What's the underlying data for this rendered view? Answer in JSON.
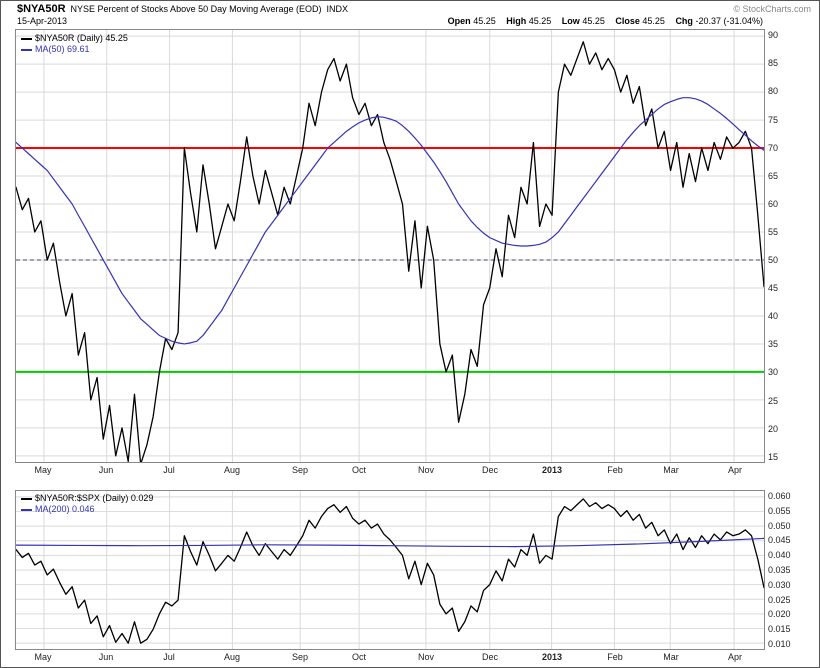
{
  "header": {
    "symbol": "$NYA50R",
    "title": "NYSE Percent of Stocks Above 50 Day Moving Average (EOD)",
    "exchange": "INDX",
    "date": "15-Apr-2013",
    "copyright": "© StockCharts.com",
    "quote": {
      "open_label": "Open",
      "open_value": "45.25",
      "high_label": "High",
      "high_value": "45.25",
      "low_label": "Low",
      "low_value": "45.25",
      "close_label": "Close",
      "close_value": "45.25",
      "chg_label": "Chg",
      "chg_value": "-20.37 (-31.04%)"
    }
  },
  "months": {
    "labels": [
      "May",
      "Jun",
      "Jul",
      "Aug",
      "Sep",
      "Oct",
      "Nov",
      "Dec",
      "2013",
      "Feb",
      "Mar",
      "Apr"
    ],
    "fractions": [
      0.0373,
      0.1213,
      0.2053,
      0.2893,
      0.38,
      0.4587,
      0.548,
      0.6333,
      0.716,
      0.8,
      0.8747,
      0.96
    ],
    "bold_index": 8
  },
  "colors": {
    "grid": "#d9d9d9",
    "price": "#000000",
    "ma": "#3333b3",
    "overbought_line": "#ff0000",
    "oversold_line": "#00cc00",
    "mid_dashed_line": "#44446a"
  },
  "chart_data": [
    {
      "type": "line",
      "panel": "main",
      "legend": [
        {
          "label": "$NYA50R (Daily) 45.25",
          "color": "#000000"
        },
        {
          "label": "MA(50) 69.61",
          "color": "#3333b3"
        }
      ],
      "ylim": [
        13.9,
        91.1
      ],
      "yticks": [
        "90",
        "85",
        "80",
        "75",
        "70",
        "65",
        "60",
        "55",
        "50",
        "45",
        "40",
        "35",
        "30",
        "25",
        "20",
        "15"
      ],
      "hlines": [
        {
          "value": 70,
          "color": "#ff0000",
          "width": 2,
          "dash": ""
        },
        {
          "value": 50,
          "color": "#44446a",
          "width": 1,
          "dash": "4,3"
        },
        {
          "value": 30,
          "color": "#00cc00",
          "width": 2,
          "dash": ""
        }
      ],
      "series": [
        {
          "name": "$NYA50R",
          "color": "#000000",
          "width": 1.3,
          "values": [
            63,
            59,
            61,
            55,
            57,
            50,
            53,
            46,
            40,
            44,
            33,
            37,
            25,
            29,
            18,
            24,
            15,
            20,
            14,
            26,
            13.5,
            17,
            22,
            30,
            36,
            34,
            37,
            70,
            62,
            55,
            67,
            60,
            52,
            56,
            60,
            57,
            64,
            72,
            65,
            60,
            66,
            62,
            58,
            63,
            60,
            65,
            70,
            78,
            74,
            80,
            84,
            86,
            82,
            85,
            79,
            76,
            78,
            74,
            76,
            71,
            68,
            64,
            60,
            48,
            57,
            45,
            56,
            50,
            35,
            30,
            33,
            21,
            26,
            34,
            31,
            42,
            45,
            52,
            47,
            58,
            54,
            63,
            60,
            71,
            56,
            60,
            58,
            80,
            85,
            83,
            86,
            89,
            85,
            87,
            84,
            86,
            84,
            80,
            83,
            78,
            81,
            74,
            77,
            70,
            73,
            66,
            71,
            63,
            69,
            64,
            70,
            66,
            71,
            68,
            72,
            70,
            71,
            73,
            70,
            58,
            45.25
          ]
        },
        {
          "name": "MA(50)",
          "color": "#3333b3",
          "width": 1.2,
          "values": [
            71,
            70,
            69,
            68,
            67,
            66,
            64.5,
            63,
            61.5,
            60,
            58,
            56,
            54,
            52,
            50,
            48,
            46,
            44,
            42.5,
            41,
            39.5,
            38.5,
            37.5,
            36.5,
            36,
            35.5,
            35.2,
            35,
            35.2,
            35.5,
            36.5,
            38,
            39.5,
            41,
            43,
            45,
            47,
            49,
            51,
            53,
            55,
            56.5,
            58,
            59.5,
            61,
            62.5,
            64,
            65.5,
            67,
            68.5,
            70,
            71,
            72,
            73,
            73.8,
            74.5,
            75,
            75.4,
            75.6,
            75.5,
            75.2,
            74.8,
            74,
            73,
            71.8,
            70.5,
            69,
            67.5,
            65.8,
            64,
            62,
            60,
            58.5,
            57,
            55.8,
            54.8,
            54,
            53.5,
            53,
            52.8,
            52.6,
            52.5,
            52.5,
            52.6,
            52.8,
            53.2,
            54,
            55,
            56.5,
            58,
            59.5,
            61,
            62.5,
            64,
            65.5,
            67,
            68.5,
            70,
            71.5,
            72.8,
            74,
            75,
            76,
            77,
            77.8,
            78.3,
            78.7,
            79,
            79,
            78.8,
            78.4,
            77.8,
            77,
            76.2,
            75.3,
            74.3,
            73.3,
            72.3,
            71.3,
            70.4,
            69.61
          ]
        }
      ]
    },
    {
      "type": "line",
      "panel": "ratio",
      "legend": [
        {
          "label": "$NYA50R:$SPX (Daily) 0.029",
          "color": "#000000"
        },
        {
          "label": "MA(200) 0.046",
          "color": "#3333b3"
        }
      ],
      "ylim": [
        0.008,
        0.062
      ],
      "yticks": [
        "0.060",
        "0.055",
        "0.050",
        "0.045",
        "0.040",
        "0.035",
        "0.030",
        "0.025",
        "0.020",
        "0.015",
        "0.010"
      ],
      "hlines": [],
      "series": [
        {
          "name": "$NYA50R:$SPX",
          "color": "#000000",
          "width": 1.3,
          "values": [
            0.042,
            0.0393,
            0.0407,
            0.0367,
            0.038,
            0.0333,
            0.0353,
            0.0307,
            0.0267,
            0.0293,
            0.022,
            0.0247,
            0.0167,
            0.0193,
            0.0122,
            0.016,
            0.0103,
            0.0133,
            0.01,
            0.0173,
            0.01,
            0.0113,
            0.0147,
            0.02,
            0.024,
            0.0227,
            0.0247,
            0.0467,
            0.0413,
            0.0367,
            0.0447,
            0.04,
            0.0347,
            0.0373,
            0.04,
            0.038,
            0.0427,
            0.048,
            0.0433,
            0.04,
            0.044,
            0.0413,
            0.0387,
            0.042,
            0.04,
            0.0433,
            0.0467,
            0.052,
            0.0493,
            0.0533,
            0.056,
            0.0573,
            0.0547,
            0.0567,
            0.0527,
            0.0507,
            0.052,
            0.0493,
            0.0507,
            0.0473,
            0.0453,
            0.0427,
            0.04,
            0.032,
            0.038,
            0.03,
            0.0373,
            0.0333,
            0.0233,
            0.02,
            0.022,
            0.014,
            0.0173,
            0.0227,
            0.0207,
            0.028,
            0.03,
            0.0347,
            0.0313,
            0.0387,
            0.036,
            0.042,
            0.04,
            0.0473,
            0.0373,
            0.04,
            0.0387,
            0.0533,
            0.0567,
            0.0553,
            0.0573,
            0.0593,
            0.0567,
            0.058,
            0.056,
            0.0573,
            0.056,
            0.0533,
            0.0553,
            0.052,
            0.054,
            0.0493,
            0.0513,
            0.0467,
            0.0487,
            0.044,
            0.0473,
            0.042,
            0.046,
            0.0427,
            0.0467,
            0.044,
            0.0473,
            0.0453,
            0.048,
            0.0467,
            0.0473,
            0.0487,
            0.0467,
            0.0387,
            0.029
          ]
        },
        {
          "name": "MA(200)",
          "color": "#3333b3",
          "width": 1.2,
          "values": [
            0.0435,
            0.0434,
            0.0433,
            0.0434,
            0.0436,
            0.0435,
            0.0433,
            0.0431,
            0.043,
            0.0433,
            0.0439,
            0.0448,
            0.0458
          ]
        }
      ]
    }
  ]
}
